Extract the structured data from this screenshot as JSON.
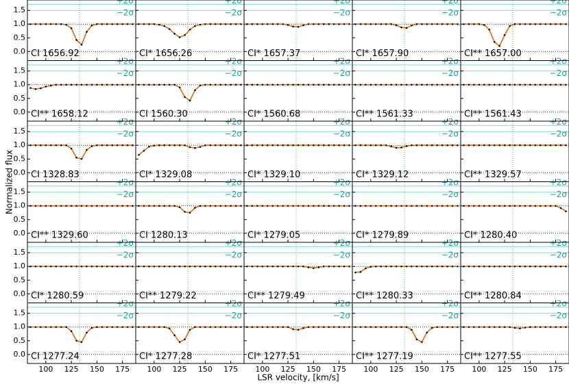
{
  "chart_data": {
    "type": "line",
    "xlabel": "LSR velocity, [km/s]",
    "ylabel": "Normalized flux",
    "xlim": [
      82,
      188
    ],
    "ylim": [
      -0.33,
      1.88
    ],
    "xticks": [
      100,
      125,
      150,
      175
    ],
    "yticks": [
      {
        "value": 0,
        "label": "0.0"
      },
      {
        "value": 0.5,
        "label": "0.5"
      },
      {
        "value": 1,
        "label": "1.0"
      },
      {
        "value": 1.5,
        "label": "1.5"
      }
    ],
    "reference_velocity": 133,
    "sigma_lines": [
      {
        "label": "+2σ",
        "value": 1.72
      },
      {
        "label": "−2σ",
        "value": 1.5
      }
    ],
    "color": "#e8650a",
    "x": [
      85,
      90,
      95,
      100,
      105,
      110,
      115,
      120,
      125,
      130,
      135,
      140,
      145,
      150,
      155,
      160,
      165,
      170,
      175,
      180,
      185
    ],
    "panels": [
      {
        "label": "CI 1656.92",
        "values": [
          1,
          1,
          1,
          1,
          1,
          1,
          1,
          0.98,
          0.85,
          0.42,
          0.25,
          0.72,
          0.95,
          1,
          1,
          1,
          1,
          1,
          1,
          1,
          1
        ]
      },
      {
        "label": "CI* 1656.26",
        "values": [
          1,
          1,
          1,
          1,
          0.98,
          0.93,
          0.82,
          0.65,
          0.52,
          0.6,
          0.8,
          0.93,
          0.98,
          1,
          1,
          1,
          1,
          1,
          1,
          1,
          1
        ]
      },
      {
        "label": "CI* 1657.37",
        "values": [
          1,
          1,
          1,
          1,
          1,
          1,
          1,
          1,
          0.97,
          0.91,
          0.9,
          0.96,
          1,
          1,
          1,
          1,
          1,
          1,
          1,
          1,
          1
        ]
      },
      {
        "label": "CI* 1657.90",
        "values": [
          1,
          1,
          1,
          1,
          1,
          1,
          1,
          1,
          0.96,
          0.88,
          0.86,
          0.95,
          1,
          1,
          1,
          1,
          1,
          1,
          1,
          1,
          1
        ]
      },
      {
        "label": "CI** 1657.00",
        "values": [
          1,
          1,
          1,
          1,
          0.97,
          0.8,
          0.35,
          0.2,
          0.6,
          0.93,
          1,
          1,
          1,
          1,
          1,
          1,
          1,
          1,
          1,
          1,
          1
        ]
      },
      {
        "label": "CI** 1658.12",
        "values": [
          0.88,
          0.84,
          0.87,
          0.93,
          0.97,
          1,
          1,
          1,
          1,
          1,
          1,
          1,
          1,
          1,
          1,
          1,
          1,
          1,
          1,
          1,
          1
        ]
      },
      {
        "label": "CI 1560.30",
        "values": [
          1,
          1,
          1,
          1,
          1,
          1,
          1,
          1,
          0.9,
          0.55,
          0.42,
          0.8,
          0.97,
          1,
          1,
          1,
          1,
          1,
          1,
          1,
          1
        ]
      },
      {
        "label": "CI* 1560.68",
        "values": [
          1,
          1,
          1,
          1,
          1,
          1,
          1,
          1,
          1,
          1,
          1,
          1,
          1,
          1,
          1,
          1,
          1,
          1,
          1,
          1,
          1
        ]
      },
      {
        "label": "CI** 1561.33",
        "values": [
          1,
          1,
          1,
          1,
          1,
          1,
          1,
          1,
          1,
          1,
          1,
          1,
          1,
          1,
          1,
          1,
          1,
          1,
          1,
          1,
          1
        ]
      },
      {
        "label": "CI** 1561.43",
        "values": [
          1,
          1,
          1,
          1,
          1,
          1,
          1,
          1,
          1,
          1,
          1,
          1,
          1,
          1,
          1,
          1,
          1,
          1,
          1,
          1,
          1
        ]
      },
      {
        "label": "CI 1328.83",
        "values": [
          1,
          1,
          1,
          1,
          1,
          1,
          1,
          1,
          0.88,
          0.55,
          0.5,
          0.83,
          0.97,
          1,
          1,
          1,
          1,
          1,
          1,
          1,
          1
        ]
      },
      {
        "label": "CI* 1329.08",
        "values": [
          0.65,
          0.8,
          0.95,
          0.99,
          1,
          1,
          1,
          1,
          1,
          1,
          0.93,
          0.9,
          0.94,
          1,
          1,
          1,
          1,
          1,
          1,
          1,
          1
        ]
      },
      {
        "label": "CI* 1329.10",
        "values": [
          1,
          1,
          1,
          1,
          1,
          1,
          1,
          1,
          1,
          1,
          1,
          1,
          1,
          1,
          1,
          1,
          1,
          1,
          1,
          1,
          1
        ]
      },
      {
        "label": "CI* 1329.12",
        "values": [
          1,
          1,
          1,
          1,
          1,
          1,
          1,
          0.96,
          0.91,
          0.92,
          0.97,
          1,
          1,
          1,
          1,
          1,
          1,
          1,
          1,
          1,
          1
        ]
      },
      {
        "label": "CI** 1329.57",
        "values": [
          1,
          1,
          1,
          1,
          1,
          1,
          1,
          1,
          1,
          1,
          1,
          1,
          1,
          1,
          1,
          1,
          1,
          1,
          1,
          1,
          1
        ]
      },
      {
        "label": "CI** 1329.60",
        "values": [
          1,
          1,
          1,
          1,
          1,
          1,
          1,
          1,
          1,
          1,
          1,
          1,
          1,
          1,
          1,
          1,
          1,
          1,
          1,
          1,
          1
        ]
      },
      {
        "label": "CI 1280.13",
        "values": [
          1,
          1,
          1,
          1,
          1,
          1,
          1,
          1,
          0.95,
          0.78,
          0.75,
          0.93,
          1,
          1,
          1,
          1,
          1,
          1,
          1,
          1,
          1
        ]
      },
      {
        "label": "CI* 1279.05",
        "values": [
          1,
          1,
          1,
          1,
          1,
          1,
          1,
          1,
          1,
          1,
          1,
          1,
          1,
          1,
          1,
          1,
          1,
          1,
          1,
          1,
          1
        ]
      },
      {
        "label": "CI* 1279.89",
        "values": [
          1,
          1,
          1,
          1,
          1,
          1,
          1,
          1,
          1,
          1,
          1,
          1,
          1,
          1,
          1,
          1,
          1,
          1,
          1,
          1,
          1
        ]
      },
      {
        "label": "CI* 1280.40",
        "values": [
          1,
          1,
          1,
          1,
          1,
          1,
          1,
          1,
          1,
          1,
          1,
          1,
          1,
          1,
          1,
          1,
          1,
          1,
          1,
          0.92,
          0.8
        ]
      },
      {
        "label": "CI* 1280.59",
        "values": [
          1,
          1,
          1,
          1,
          1,
          1,
          1,
          1,
          1,
          1,
          1,
          1,
          1,
          1,
          1,
          1,
          1,
          1,
          1,
          1,
          1
        ]
      },
      {
        "label": "CI** 1279.22",
        "values": [
          1,
          1,
          1,
          1,
          1,
          1,
          1,
          1,
          1,
          1,
          1,
          1,
          1,
          1,
          1,
          1,
          1,
          1,
          1,
          1,
          1
        ]
      },
      {
        "label": "CI** 1279.49",
        "values": [
          1,
          1,
          1,
          1,
          1,
          1,
          1,
          1,
          1,
          1,
          1,
          1,
          0.97,
          0.94,
          0.97,
          1,
          1,
          1,
          1,
          1,
          1
        ]
      },
      {
        "label": "CI** 1280.33",
        "values": [
          0.78,
          0.8,
          0.93,
          0.99,
          1,
          1,
          1,
          1,
          1,
          1,
          1,
          1,
          1,
          1,
          1,
          1,
          1,
          1,
          1,
          1,
          1
        ]
      },
      {
        "label": "CI** 1280.84",
        "values": [
          1,
          1,
          1,
          1,
          1,
          1,
          1,
          1,
          1,
          1,
          1,
          1,
          1,
          1,
          1,
          1,
          1,
          1,
          1,
          1,
          1
        ]
      },
      {
        "label": "CI 1277.24",
        "values": [
          1,
          1,
          1,
          1,
          1,
          1,
          1,
          1,
          0.85,
          0.5,
          0.45,
          0.8,
          0.97,
          1,
          1,
          1,
          1,
          1,
          1,
          1,
          1
        ]
      },
      {
        "label": "CI* 1277.28",
        "values": [
          1,
          1,
          1,
          1,
          1,
          1,
          0.95,
          0.7,
          0.45,
          0.55,
          0.9,
          1,
          1,
          1,
          1,
          1,
          1,
          1,
          1,
          1,
          1
        ]
      },
      {
        "label": "CI* 1277.51",
        "values": [
          1,
          1,
          1,
          1,
          1,
          1,
          1,
          1,
          1,
          0.92,
          0.9,
          0.96,
          1,
          1,
          1,
          1,
          1,
          1,
          1,
          1,
          1
        ]
      },
      {
        "label": "CI** 1277.19",
        "values": [
          1,
          1,
          1,
          1,
          1,
          1,
          1,
          1,
          1,
          1,
          1,
          0.9,
          0.55,
          0.45,
          0.8,
          0.97,
          1,
          1,
          1,
          1,
          1
        ]
      },
      {
        "label": "CI** 1277.55",
        "values": [
          1,
          1,
          1,
          1,
          1,
          1,
          1,
          1,
          1,
          1,
          0.97,
          0.95,
          0.98,
          1,
          1,
          1,
          1,
          1,
          1,
          1,
          1
        ]
      }
    ]
  }
}
